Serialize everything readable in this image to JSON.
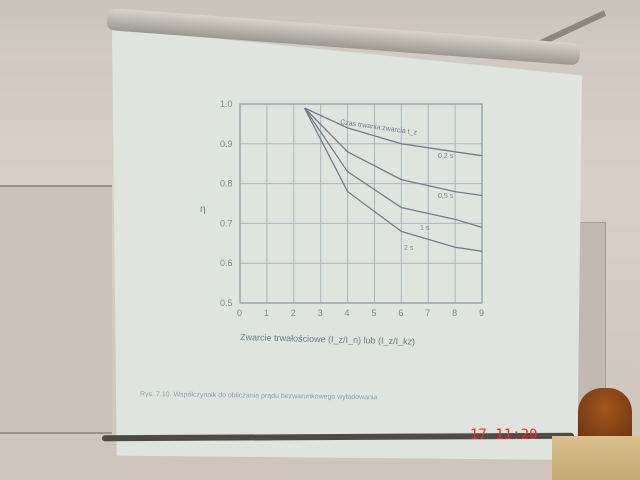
{
  "scene": {
    "timestamp": "17 11:20",
    "caption": "Rys. 7.10. Współczynnik do obliczania prądu bezwarunkowego wyładowania"
  },
  "chart_data": {
    "type": "line",
    "title": "",
    "ylabel": "η",
    "xlabel": "Zwarcie trwałościowe (I_z/I_n) lub (I_z/I_kz)",
    "xlim": [
      0,
      9
    ],
    "ylim": [
      0.5,
      1.0
    ],
    "x_ticks": [
      "0",
      "1",
      "2",
      "3",
      "4",
      "5",
      "6",
      "7",
      "8",
      "9"
    ],
    "y_ticks": [
      "0.5",
      "0.6",
      "0.7",
      "0.8",
      "0.9",
      "1.0"
    ],
    "legend_title": "Czas trwania zwarcia t_z",
    "grid": true,
    "series": [
      {
        "name": "0,2 s",
        "x": [
          2.4,
          4,
          6,
          8,
          9.0
        ],
        "y": [
          0.99,
          0.94,
          0.9,
          0.88,
          0.87
        ]
      },
      {
        "name": "0,5 s",
        "x": [
          2.4,
          4,
          6,
          8,
          9.0
        ],
        "y": [
          0.99,
          0.88,
          0.81,
          0.78,
          0.77
        ]
      },
      {
        "name": "1 s",
        "x": [
          2.4,
          4,
          6,
          8,
          9.0
        ],
        "y": [
          0.99,
          0.83,
          0.74,
          0.71,
          0.69
        ]
      },
      {
        "name": "2 s",
        "x": [
          2.4,
          4,
          6,
          8,
          9.0
        ],
        "y": [
          0.99,
          0.78,
          0.68,
          0.64,
          0.63
        ]
      }
    ]
  }
}
